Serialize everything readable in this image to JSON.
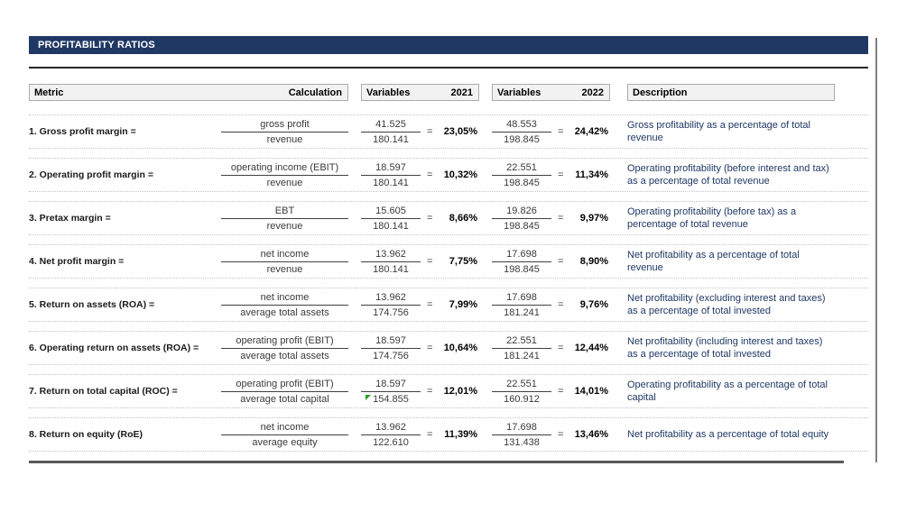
{
  "title": "PROFITABILITY RATIOS",
  "ui": {
    "equals": "="
  },
  "columns": {
    "metric": "Metric",
    "calculation": "Calculation",
    "variables_2021": {
      "label": "Variables",
      "year": "2021"
    },
    "variables_2022": {
      "label": "Variables",
      "year": "2022"
    },
    "description": "Description"
  },
  "colors": {
    "header_bar_bg": "#1f3864",
    "header_bar_text": "#ffffff",
    "column_header_bg": "#f2f2f2",
    "column_header_border": "#ababab",
    "row_divider": "#c4c4c4",
    "fraction_line": "#404040",
    "metric_text": "#1a1a1a",
    "value_text": "#3a3a3a",
    "result_text": "#000000",
    "description_text": "#1f3864",
    "error_flag": "#21a121",
    "page_break_line": "#808080",
    "rule_dark": "#262626",
    "bottom_rule": "#595959"
  },
  "rows": [
    {
      "metric": "1. Gross profit margin =",
      "formula": {
        "numerator": "gross profit",
        "denominator": "revenue"
      },
      "y2021": {
        "numerator": "41.525",
        "denominator": "180.141",
        "result": "23,05%"
      },
      "y2022": {
        "numerator": "48.553",
        "denominator": "198.845",
        "result": "24,42%"
      },
      "description": "Gross profitability as a percentage of total revenue",
      "flag_2021_denominator": false
    },
    {
      "metric": "2. Operating profit margin =",
      "formula": {
        "numerator": "operating income (EBIT)",
        "denominator": "revenue"
      },
      "y2021": {
        "numerator": "18.597",
        "denominator": "180.141",
        "result": "10,32%"
      },
      "y2022": {
        "numerator": "22.551",
        "denominator": "198.845",
        "result": "11,34%"
      },
      "description": "Operating profitability (before interest and tax) as a percentage of total revenue",
      "flag_2021_denominator": false
    },
    {
      "metric": "3. Pretax margin =",
      "formula": {
        "numerator": "EBT",
        "denominator": "revenue"
      },
      "y2021": {
        "numerator": "15.605",
        "denominator": "180.141",
        "result": "8,66%"
      },
      "y2022": {
        "numerator": "19.826",
        "denominator": "198.845",
        "result": "9,97%"
      },
      "description": "Operating profitability (before tax) as a percentage of total revenue",
      "flag_2021_denominator": false
    },
    {
      "metric": "4. Net profit margin =",
      "formula": {
        "numerator": "net income",
        "denominator": "revenue"
      },
      "y2021": {
        "numerator": "13.962",
        "denominator": "180.141",
        "result": "7,75%"
      },
      "y2022": {
        "numerator": "17.698",
        "denominator": "198.845",
        "result": "8,90%"
      },
      "description": "Net profitability as a percentage of total revenue",
      "flag_2021_denominator": false
    },
    {
      "metric": "5. Return on assets (ROA) =",
      "formula": {
        "numerator": "net income",
        "denominator": "average total assets"
      },
      "y2021": {
        "numerator": "13.962",
        "denominator": "174.756",
        "result": "7,99%"
      },
      "y2022": {
        "numerator": "17.698",
        "denominator": "181.241",
        "result": "9,76%"
      },
      "description": "Net profitability (excluding interest and taxes) as a percentage of total invested",
      "flag_2021_denominator": false
    },
    {
      "metric": "6. Operating return on assets (ROA) =",
      "formula": {
        "numerator": "operating profit (EBIT)",
        "denominator": "average total assets"
      },
      "y2021": {
        "numerator": "18.597",
        "denominator": "174.756",
        "result": "10,64%"
      },
      "y2022": {
        "numerator": "22.551",
        "denominator": "181.241",
        "result": "12,44%"
      },
      "description": "Net profitability (including interest and taxes) as a percentage of total invested",
      "flag_2021_denominator": false
    },
    {
      "metric": "7. Return on total capital (ROC) =",
      "formula": {
        "numerator": "operating profit (EBIT)",
        "denominator": "average total capital"
      },
      "y2021": {
        "numerator": "18.597",
        "denominator": "154.855",
        "result": "12,01%"
      },
      "y2022": {
        "numerator": "22.551",
        "denominator": "160.912",
        "result": "14,01%"
      },
      "description": "Operating profitability as a percentage of total capital",
      "flag_2021_denominator": true
    },
    {
      "metric": "8. Return on equity (RoE)",
      "formula": {
        "numerator": "net income",
        "denominator": "average equity"
      },
      "y2021": {
        "numerator": "13.962",
        "denominator": "122.610",
        "result": "11,39%"
      },
      "y2022": {
        "numerator": "17.698",
        "denominator": "131.438",
        "result": "13,46%"
      },
      "description": "Net profitability as a percentage of total equity",
      "flag_2021_denominator": false
    }
  ]
}
